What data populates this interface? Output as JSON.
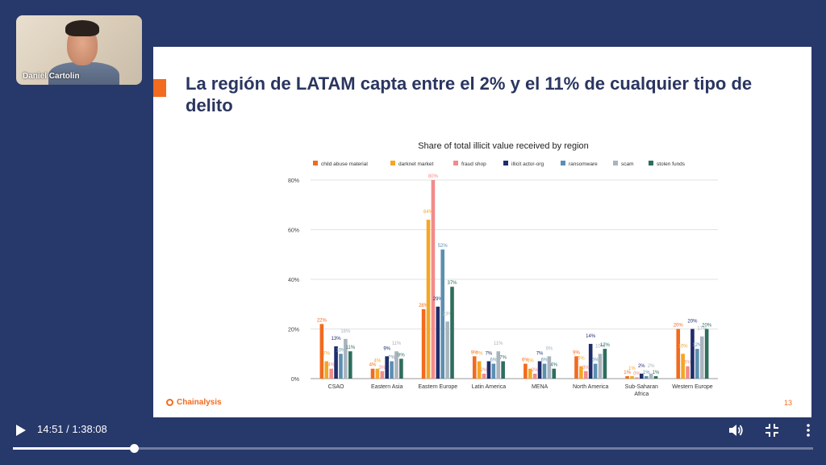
{
  "presenter": {
    "name": "Daniel Cartolin"
  },
  "slide": {
    "title": "La región de LATAM capta entre el 2% y el 11% de cualquier tipo de delito",
    "logo_text": "Chainalysis",
    "page_number": "13"
  },
  "player": {
    "current_time": "14:51",
    "separator": " / ",
    "duration": "1:38:08",
    "progress_fraction": 0.1512
  },
  "colors": {
    "background": "#27386a",
    "accent": "#f26b1f",
    "title": "#2a3560"
  },
  "icons": [
    "play-icon",
    "volume-icon",
    "exit-fullscreen-icon",
    "more-vert-icon",
    "chainalysis-logo-icon"
  ],
  "chart_data": {
    "type": "bar",
    "title": "Share of total illicit value received by region",
    "xlabel": "",
    "ylabel": "",
    "ylim": [
      0,
      80
    ],
    "yticks": [
      "0%",
      "20%",
      "40%",
      "60%",
      "80%"
    ],
    "grid": true,
    "legend_position": "top",
    "categories": [
      "CSAO",
      "Eastern Asia",
      "Eastern Europe",
      "Latin America",
      "MENA",
      "North America",
      "Sub-Saharan Africa",
      "Western Europe"
    ],
    "series": [
      {
        "name": "child abuse material",
        "color": "#f26b1f",
        "values": [
          22,
          4,
          28,
          9,
          6,
          9,
          1,
          20
        ],
        "labels": [
          "22%",
          "4%",
          "28%",
          "9%",
          "6%",
          "9%",
          "1%",
          "20%"
        ]
      },
      {
        "name": "darknet market",
        "color": "#f5a623",
        "values": [
          7,
          4,
          64,
          7,
          4,
          5,
          1,
          10
        ],
        "labels": [
          "7%",
          "4%",
          "64%",
          "7%",
          "4%",
          "5%",
          "1%",
          "10%"
        ]
      },
      {
        "name": "fraud shop",
        "color": "#f28b8b",
        "values": [
          4,
          3,
          80,
          2,
          2,
          3,
          0.5,
          5
        ],
        "labels": [
          "4%",
          "3%",
          "80%",
          "2%",
          "2%",
          "3%",
          "0%",
          "5%"
        ]
      },
      {
        "name": "illicit actor-org",
        "color": "#1f2d6b",
        "values": [
          13,
          9,
          29,
          7,
          7,
          14,
          2,
          20
        ],
        "labels": [
          "13%",
          "9%",
          "29%",
          "7%",
          "7%",
          "14%",
          "2%",
          "20%"
        ]
      },
      {
        "name": "ransomware",
        "color": "#5b8fb0",
        "values": [
          10,
          7,
          52,
          6,
          6,
          6,
          1,
          12
        ],
        "labels": [
          "10%",
          "7%",
          "52%",
          "6%",
          "6%",
          "6%",
          "1%",
          "12%"
        ]
      },
      {
        "name": "scam",
        "color": "#a9b4bf",
        "values": [
          16,
          11,
          23,
          11,
          9,
          10,
          2,
          17
        ],
        "labels": [
          "16%",
          "11%",
          "23%",
          "11%",
          "9%",
          "10%",
          "2%",
          "17%"
        ]
      },
      {
        "name": "stolen funds",
        "color": "#2e6e5e",
        "values": [
          11,
          8,
          37,
          7,
          4,
          12,
          1,
          20
        ],
        "labels": [
          "11%",
          "8%",
          "37%",
          "7%",
          "4%",
          "12%",
          "1%",
          "20%"
        ]
      }
    ]
  }
}
